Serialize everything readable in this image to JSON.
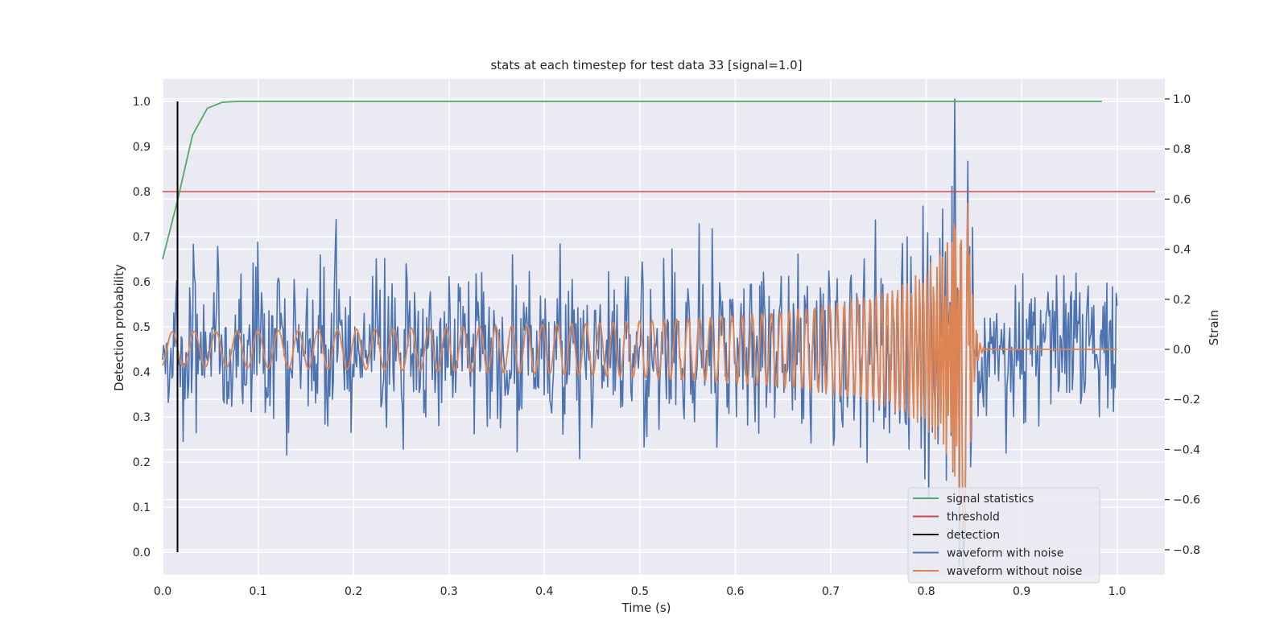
{
  "chart_data": {
    "type": "line",
    "title": "stats at each timestep for test data 33 [signal=1.0]",
    "xlabel": "Time (s)",
    "ylabel": "Detection probability",
    "ylabel_right": "Strain",
    "xlim": [
      0.0,
      1.05
    ],
    "ylim": [
      -0.05,
      1.05
    ],
    "ylim_right": [
      -0.9,
      1.08
    ],
    "x_ticks": [
      0.0,
      0.1,
      0.2,
      0.3,
      0.4,
      0.5,
      0.6,
      0.7,
      0.8,
      0.9,
      1.0
    ],
    "x_tick_labels": [
      "0.0",
      "0.1",
      "0.2",
      "0.3",
      "0.4",
      "0.5",
      "0.6",
      "0.7",
      "0.8",
      "0.9",
      "1.0"
    ],
    "y_ticks": [
      0.0,
      0.1,
      0.2,
      0.3,
      0.4,
      0.5,
      0.6,
      0.7,
      0.8,
      0.9,
      1.0
    ],
    "y_tick_labels": [
      "0.0",
      "0.1",
      "0.2",
      "0.3",
      "0.4",
      "0.5",
      "0.6",
      "0.7",
      "0.8",
      "0.9",
      "1.0"
    ],
    "y_right_ticks": [
      -0.8,
      -0.6,
      -0.4,
      -0.2,
      0.0,
      0.2,
      0.4,
      0.6,
      0.8,
      1.0
    ],
    "y_right_tick_labels": [
      "−0.8",
      "−0.6",
      "−0.4",
      "−0.2",
      "0.0",
      "0.2",
      "0.4",
      "0.6",
      "0.8",
      "1.0"
    ],
    "grid": true,
    "legend_position": "lower-right",
    "series": [
      {
        "name": "signal statistics",
        "axis": "left",
        "color": "#55a868",
        "x": [
          0.0,
          0.0156,
          0.0313,
          0.0469,
          0.0625,
          0.0781,
          0.25,
          0.5,
          0.75,
          0.984
        ],
        "y": [
          0.65,
          0.78,
          0.925,
          0.985,
          0.998,
          1.0,
          1.0,
          1.0,
          1.0,
          1.0
        ]
      },
      {
        "name": "threshold",
        "axis": "left",
        "color": "#c44e52",
        "x": [
          0.0,
          1.04
        ],
        "y": [
          0.8,
          0.8
        ]
      },
      {
        "name": "detection",
        "axis": "left",
        "color": "#000000",
        "x": [
          0.0156,
          0.0156
        ],
        "y": [
          0.0,
          1.0
        ]
      },
      {
        "name": "waveform with noise",
        "axis": "right",
        "color": "#4c72b0",
        "x_start": 0.0,
        "x_end": 1.0,
        "n_points": 1024,
        "noise_std": 0.15,
        "peak": 1.0,
        "peak_time": 0.83
      },
      {
        "name": "waveform without noise",
        "axis": "right",
        "color": "#dd8452",
        "x_start": 0.0,
        "x_end": 1.0,
        "n_points": 1024,
        "merger_time": 0.845,
        "peak_amplitude": 0.71,
        "min_amplitude": -0.62,
        "start_amplitude": 0.07
      }
    ]
  }
}
